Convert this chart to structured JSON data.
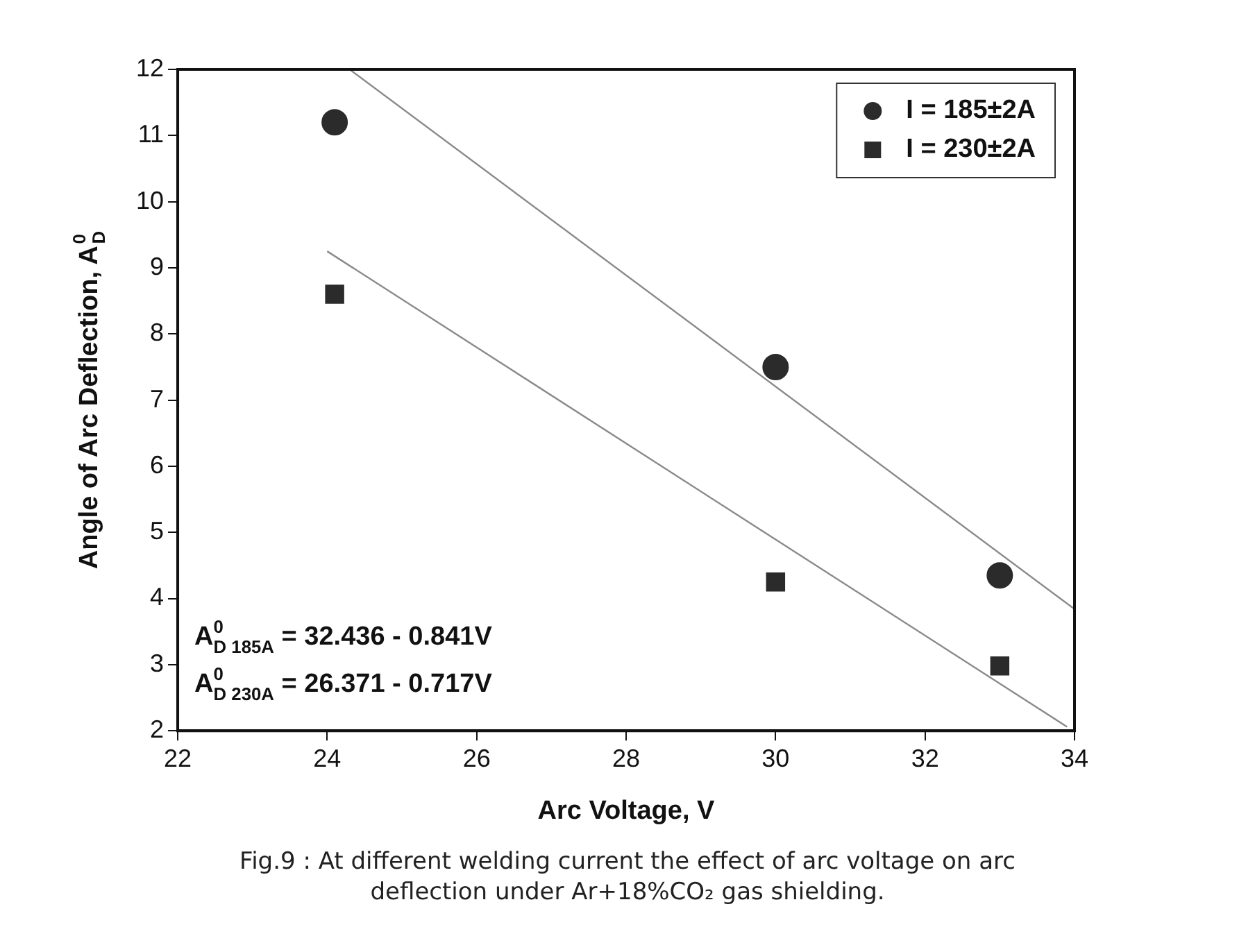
{
  "chart_data": {
    "type": "scatter",
    "xlabel": "Arc Voltage, V",
    "ylabel": "Angle of Arc Deflection, A$_{D}$$^{0}$",
    "xlim": [
      22,
      34
    ],
    "xticks": [
      22,
      24,
      26,
      28,
      30,
      32,
      34
    ],
    "ylim": [
      2,
      12
    ],
    "yticks": [
      2,
      3,
      4,
      5,
      6,
      7,
      8,
      9,
      10,
      11,
      12
    ],
    "grid": false,
    "legend": "top right",
    "series": [
      {
        "name": "I = 185±2A",
        "color": "#2b2b2b",
        "marker": "circle",
        "x": [
          24.1,
          30,
          33
        ],
        "values": [
          11.2,
          7.5,
          4.35
        ]
      },
      {
        "name": "I = 230±2A",
        "color": "#2b2b2b",
        "marker": "square",
        "x": [
          24.1,
          30,
          33
        ],
        "values": [
          8.6,
          4.25,
          2.98
        ]
      },
      {
        "type": "line",
        "color": "#8a8a8a",
        "marker": "none",
        "x": [
          24.3,
          34
        ],
        "values": [
          12,
          3.84
        ]
      },
      {
        "type": "line",
        "color": "#8a8a8a",
        "marker": "none",
        "x": [
          24,
          33.9
        ],
        "values": [
          9.25,
          2.06
        ]
      }
    ],
    "annotations": [
      {
        "text": "A$^{0}$$_{D 185A}$ = 32.436 - 0.841V"
      },
      {
        "text": "A$^{0}$$_{D 230A}$ = 26.371 - 0.717V"
      },
      "Fig.9 :  At different welding current the effect of arc voltage on arc deflection under Ar+18%CO₂ gas shielding."
    ]
  }
}
